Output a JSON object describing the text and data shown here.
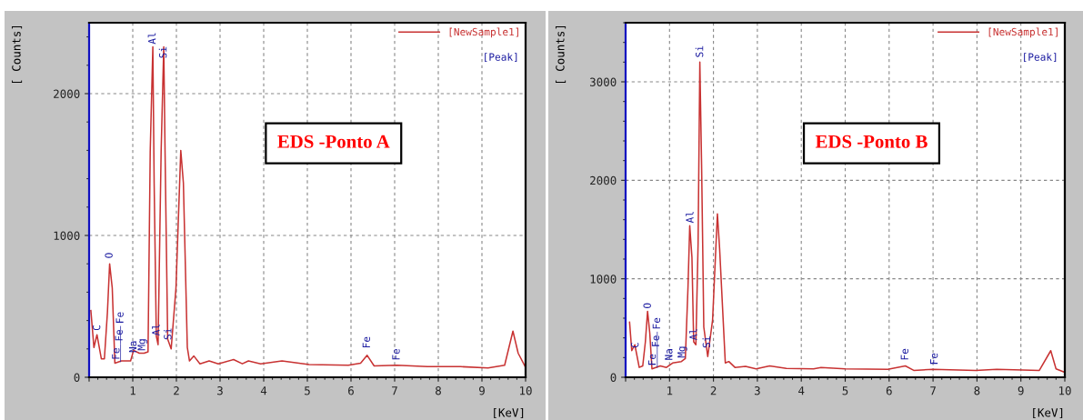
{
  "chart_data": [
    {
      "type": "line",
      "title": "EDS -Ponto A",
      "xlabel": "[KeV]",
      "ylabel": "[ Counts]",
      "xlim": [
        0,
        10
      ],
      "ylim": [
        0,
        2500
      ],
      "xticks": [
        {
          "value": 0,
          "label": null
        },
        1,
        2,
        3,
        4,
        5,
        6,
        7,
        8,
        9,
        10
      ],
      "yticks": [
        0,
        1000,
        2000
      ],
      "grid": true,
      "legend": "top right",
      "marker": "none",
      "line_style": "solid",
      "series": [
        {
          "name": "[NewSample1]",
          "color": "#c83232",
          "x": [
            0.04,
            0.11,
            0.18,
            0.28,
            0.35,
            0.42,
            0.47,
            0.53,
            0.59,
            0.74,
            0.95,
            1.02,
            1.15,
            1.26,
            1.35,
            1.4,
            1.46,
            1.49,
            1.54,
            1.58,
            1.65,
            1.71,
            1.74,
            1.8,
            1.88,
            1.99,
            2.1,
            2.16,
            2.25,
            2.3,
            2.4,
            2.54,
            2.75,
            2.96,
            3.31,
            3.51,
            3.65,
            3.93,
            4.42,
            5.04,
            5.94,
            6.22,
            6.37,
            6.53,
            7.05,
            7.75,
            8.51,
            9.14,
            9.52,
            9.71,
            9.83,
            9.99
          ],
          "values": [
            470,
            210,
            300,
            130,
            130,
            460,
            800,
            630,
            100,
            115,
            115,
            190,
            170,
            170,
            180,
            1590,
            2330,
            1370,
            290,
            230,
            1590,
            2330,
            1590,
            270,
            200,
            630,
            1600,
            1370,
            210,
            115,
            150,
            95,
            115,
            95,
            125,
            95,
            115,
            95,
            115,
            90,
            85,
            100,
            155,
            80,
            85,
            75,
            75,
            65,
            85,
            325,
            170,
            75
          ]
        }
      ],
      "annotations": [
        "[Peak]",
        {
          "text": "C",
          "x": 0.19,
          "y": 310
        },
        {
          "text": "O",
          "x": 0.47,
          "y": 820
        },
        {
          "text": "Fe",
          "x": 0.63,
          "y": 105
        },
        {
          "text": "Fe",
          "x": 0.7,
          "y": 110
        },
        {
          "text": "Fe",
          "x": 0.72,
          "y": 110
        },
        {
          "text": "Na",
          "x": 1.02,
          "y": 155
        },
        {
          "text": "Mg",
          "x": 1.22,
          "y": 170
        },
        {
          "text": "Al",
          "x": 1.46,
          "y": 2330
        },
        {
          "text": "Al",
          "x": 1.55,
          "y": 275
        },
        {
          "text": "Si",
          "x": 1.71,
          "y": 2230
        },
        {
          "text": "Si",
          "x": 1.82,
          "y": 245
        },
        {
          "text": "Fe",
          "x": 6.37,
          "y": 185
        },
        {
          "text": "Fe",
          "x": 7.05,
          "y": 100
        }
      ]
    },
    {
      "type": "line",
      "title": "EDS -Ponto B",
      "xlabel": "[KeV]",
      "ylabel": "[ Counts]",
      "xlim": [
        0,
        10
      ],
      "ylim": [
        0,
        3600
      ],
      "xticks": [
        {
          "value": 0,
          "label": null
        },
        1,
        2,
        3,
        4,
        5,
        6,
        7,
        8,
        9,
        10
      ],
      "yticks": [
        0,
        1000,
        2000,
        3000
      ],
      "grid": true,
      "legend": "top right",
      "marker": "none",
      "line_style": "solid",
      "series": [
        {
          "name": "[NewSample1]",
          "color": "#c83232",
          "x": [
            0.09,
            0.14,
            0.21,
            0.31,
            0.39,
            0.45,
            0.5,
            0.55,
            0.6,
            0.79,
            0.93,
            1.07,
            1.27,
            1.36,
            1.42,
            1.46,
            1.51,
            1.55,
            1.6,
            1.65,
            1.69,
            1.73,
            1.78,
            1.87,
            1.98,
            2.09,
            2.14,
            2.27,
            2.35,
            2.49,
            2.73,
            2.97,
            3.28,
            3.66,
            4.28,
            4.45,
            5.0,
            5.97,
            6.37,
            6.56,
            7.0,
            7.97,
            8.45,
            9.42,
            9.68,
            9.8,
            9.97
          ],
          "values": [
            560,
            270,
            330,
            100,
            115,
            360,
            670,
            450,
            85,
            115,
            100,
            145,
            160,
            190,
            910,
            1540,
            1220,
            360,
            330,
            1350,
            3200,
            2160,
            510,
            210,
            580,
            1660,
            1310,
            145,
            160,
            100,
            110,
            85,
            115,
            90,
            85,
            100,
            85,
            80,
            115,
            70,
            80,
            70,
            80,
            70,
            270,
            85,
            55
          ]
        }
      ],
      "annotations": [
        "[Peak]",
        {
          "text": "C",
          "x": 0.23,
          "y": 270
        },
        {
          "text": "O",
          "x": 0.51,
          "y": 670
        },
        {
          "text": "Fe",
          "x": 0.62,
          "y": 90
        },
        {
          "text": "Fe",
          "x": 0.7,
          "y": 100
        },
        {
          "text": "Fe",
          "x": 0.72,
          "y": 100
        },
        {
          "text": "Na",
          "x": 1.0,
          "y": 145
        },
        {
          "text": "Mg",
          "x": 1.29,
          "y": 170
        },
        {
          "text": "Al",
          "x": 1.48,
          "y": 1540
        },
        {
          "text": "Al",
          "x": 1.56,
          "y": 350
        },
        {
          "text": "Si",
          "x": 1.7,
          "y": 3220
        },
        {
          "text": "Si",
          "x": 1.86,
          "y": 270
        },
        {
          "text": "Fe",
          "x": 6.37,
          "y": 145
        },
        {
          "text": "Fe",
          "x": 7.04,
          "y": 100
        }
      ]
    }
  ]
}
